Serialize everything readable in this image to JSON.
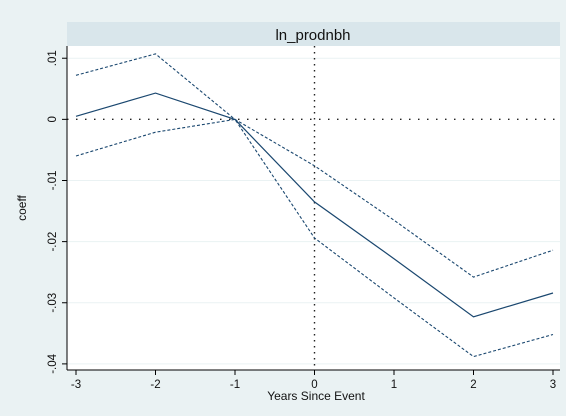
{
  "chart_data": {
    "type": "line",
    "title": "ln_prodnbh",
    "xlabel": "Years Since Event",
    "ylabel": "coeff",
    "x": [
      -3,
      -2,
      -1,
      0,
      1,
      2,
      3
    ],
    "xticks": [
      -3,
      -2,
      -1,
      0,
      1,
      2,
      3
    ],
    "xtick_labels": [
      "-3",
      "-2",
      "-1",
      "0",
      "1",
      "2",
      "3"
    ],
    "yticks": [
      -0.04,
      -0.03,
      -0.02,
      -0.01,
      0,
      0.01
    ],
    "ytick_labels": [
      "-.04",
      "-.03",
      "-.02",
      "-.01",
      "0",
      ".01"
    ],
    "xlim": [
      -3,
      3
    ],
    "ylim": [
      -0.041,
      0.012
    ],
    "grid": "horizontal",
    "series": [
      {
        "role": "estimate",
        "values": [
          0.0005,
          0.0043,
          0.0,
          -0.0135,
          -0.0228,
          -0.0323,
          -0.0284
        ],
        "color": "#1a476f",
        "dash": "solid"
      },
      {
        "role": "upper",
        "values": [
          0.0072,
          0.0107,
          0.0,
          -0.0076,
          -0.0165,
          -0.0258,
          -0.0214
        ],
        "color": "#1a476f",
        "dash": "dashed"
      },
      {
        "role": "lower",
        "values": [
          -0.006,
          -0.0021,
          0.0,
          -0.0194,
          -0.0292,
          -0.0388,
          -0.0352
        ],
        "color": "#1a476f",
        "dash": "dashed"
      }
    ],
    "reference_lines": [
      {
        "axis": "y",
        "value": 0,
        "style": "dotted"
      },
      {
        "axis": "x",
        "value": 0,
        "style": "dotted"
      }
    ]
  },
  "colors": {
    "background": "#eaf2f3",
    "plot_background": "#ffffff",
    "title_band": "#d9e6eb",
    "grid": "#eaf2f3",
    "series": "#1a476f"
  }
}
